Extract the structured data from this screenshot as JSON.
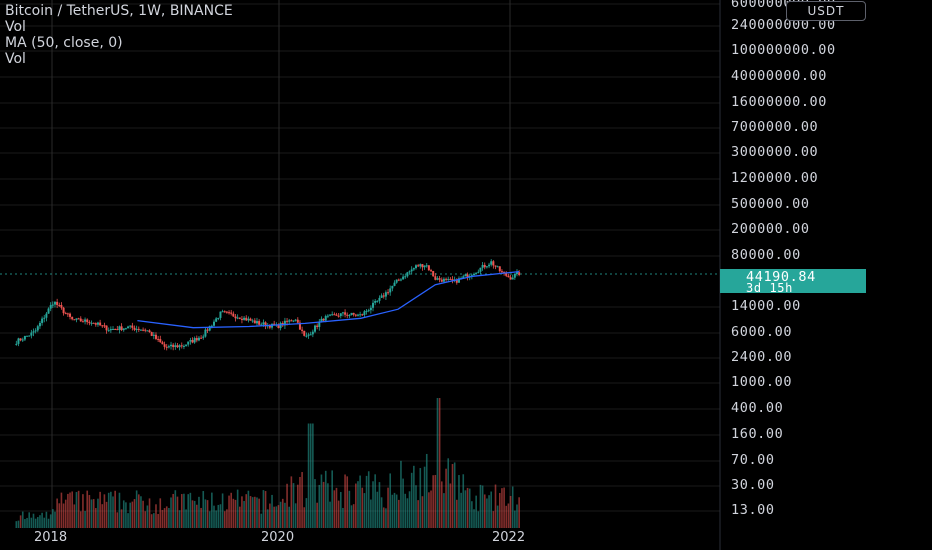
{
  "legend": {
    "symbol": "Bitcoin / TetherUS, 1W, BINANCE",
    "vol1": "Vol",
    "ma": "MA (50, close, 0)",
    "vol2": "Vol"
  },
  "currency": "USDT",
  "last": {
    "price": "44190.84",
    "countdown": "3d 15h"
  },
  "colors": {
    "up": "#26a69a",
    "down": "#ef5350",
    "ma": "#2962ff",
    "grid": "#1a1a1a",
    "last_line": "#26a69a"
  },
  "chart_data": {
    "type": "candlestick",
    "scale": "log",
    "price_ticks": [
      "600000000.00",
      "240000000.00",
      "100000000.00",
      "40000000.00",
      "16000000.00",
      "7000000.00",
      "3000000.00",
      "1200000.00",
      "500000.00",
      "200000.00",
      "80000.00",
      "14000.00",
      "6000.00",
      "2400.00",
      "1000.00",
      "400.00",
      "160.00",
      "70.00",
      "30.00",
      "13.00"
    ],
    "x_ticks": [
      "2018",
      "2020",
      "2022"
    ],
    "last_price": 44190.84,
    "series": [
      {
        "name": "Bitcoin / TetherUS, 1W, BINANCE",
        "points": [
          [
            "2017-08",
            4300
          ],
          [
            "2017-10",
            6000
          ],
          [
            "2017-12",
            17000
          ],
          [
            "2018-02",
            9000
          ],
          [
            "2018-04",
            8500
          ],
          [
            "2018-06",
            6500
          ],
          [
            "2018-08",
            7000
          ],
          [
            "2018-10",
            6400
          ],
          [
            "2018-12",
            3500
          ],
          [
            "2019-02",
            3800
          ],
          [
            "2019-04",
            5300
          ],
          [
            "2019-06",
            11500
          ],
          [
            "2019-08",
            10000
          ],
          [
            "2019-10",
            8000
          ],
          [
            "2019-12",
            7200
          ],
          [
            "2020-02",
            9500
          ],
          [
            "2020-03",
            4800
          ],
          [
            "2020-05",
            9500
          ],
          [
            "2020-07",
            11000
          ],
          [
            "2020-09",
            10500
          ],
          [
            "2020-11",
            18000
          ],
          [
            "2021-01",
            35000
          ],
          [
            "2021-03",
            57000
          ],
          [
            "2021-04",
            60000
          ],
          [
            "2021-05",
            37000
          ],
          [
            "2021-07",
            33000
          ],
          [
            "2021-09",
            45000
          ],
          [
            "2021-11",
            65000
          ],
          [
            "2021-12",
            47000
          ],
          [
            "2022-01",
            38000
          ],
          [
            "2022-02",
            44190.84
          ]
        ]
      },
      {
        "name": "MA (50, close, 0)",
        "points": [
          [
            "2018-09",
            8800
          ],
          [
            "2019-03",
            6900
          ],
          [
            "2019-09",
            7200
          ],
          [
            "2020-03",
            8000
          ],
          [
            "2020-09",
            9500
          ],
          [
            "2021-01",
            13000
          ],
          [
            "2021-05",
            30000
          ],
          [
            "2021-09",
            40000
          ],
          [
            "2022-02",
            47000
          ]
        ]
      },
      {
        "name": "Vol",
        "values_scale": "relative"
      }
    ]
  }
}
